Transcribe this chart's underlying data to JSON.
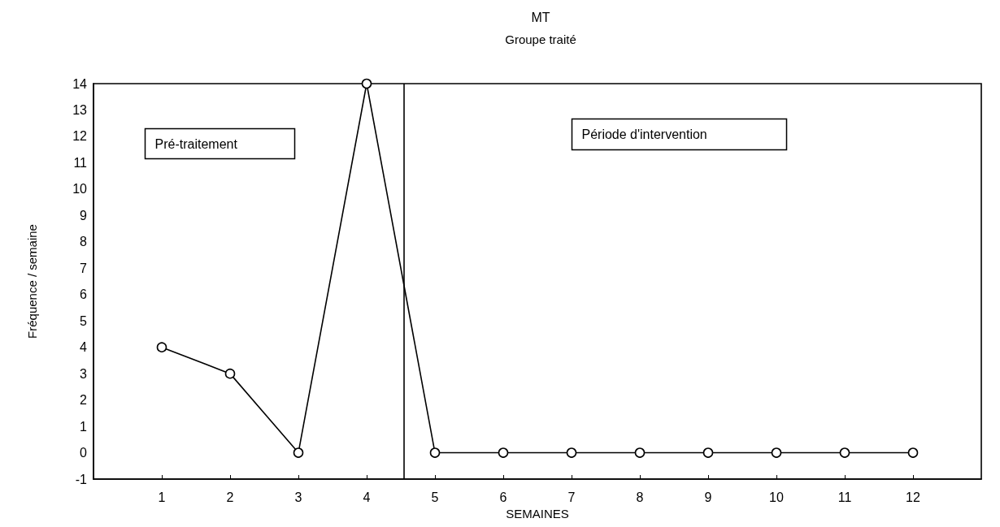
{
  "chart_data": {
    "type": "line",
    "title": "MT",
    "subtitle": "Groupe traité",
    "xlabel": "SEMAINES",
    "ylabel": "Fréquence / semaine",
    "x": [
      1,
      2,
      3,
      4,
      5,
      6,
      7,
      8,
      9,
      10,
      11,
      12
    ],
    "series": [
      {
        "color": "#000000",
        "values": [
          4,
          3,
          0,
          14,
          0,
          0,
          0,
          0,
          0,
          0,
          0,
          0
        ]
      }
    ],
    "xlim": [
      0,
      13
    ],
    "xticks": [
      1,
      2,
      3,
      4,
      5,
      6,
      7,
      8,
      9,
      10,
      11,
      12
    ],
    "ylim": [
      -1,
      14
    ],
    "yticks": [
      -1,
      0,
      1,
      2,
      3,
      4,
      5,
      6,
      7,
      8,
      9,
      10,
      11,
      12,
      13,
      14
    ],
    "ref_lines": [
      {
        "axis": "x",
        "value": 4.55,
        "color": "#000000",
        "line_style": "solid"
      }
    ],
    "annotations": [
      "Pré-traitement",
      "Période d'intervention"
    ],
    "marker": "circle",
    "line_style": "solid"
  }
}
